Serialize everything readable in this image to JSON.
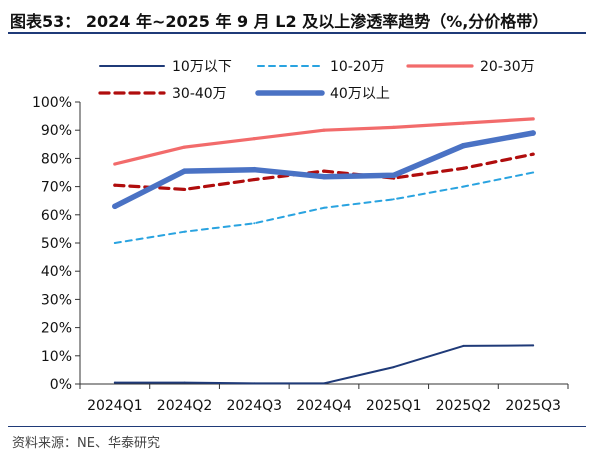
{
  "header": {
    "title": "图表53： 2024 年~2025 年 9 月 L2 及以上渗透率趋势（%,分价格带）"
  },
  "footer": {
    "source": "资料来源：NE、华泰研究"
  },
  "chart_data": {
    "type": "line",
    "categories": [
      "2024Q1",
      "2024Q2",
      "2024Q3",
      "2024Q4",
      "2025Q1",
      "2025Q2",
      "2025Q3"
    ],
    "ylim": [
      0,
      100
    ],
    "yticks": [
      "0%",
      "10%",
      "20%",
      "30%",
      "40%",
      "50%",
      "60%",
      "70%",
      "80%",
      "90%",
      "100%"
    ],
    "grid": false,
    "legend_position": "top",
    "series": [
      {
        "name": "10万以下",
        "values": [
          0.5,
          0.5,
          0.2,
          0.2,
          6,
          13.5,
          13.7
        ],
        "color": "#1f3a78",
        "style": "solid-thin"
      },
      {
        "name": "10-20万",
        "values": [
          50,
          54,
          57,
          62.5,
          65.5,
          70,
          75
        ],
        "color": "#29a3e0",
        "style": "dashed-thin"
      },
      {
        "name": "20-30万",
        "values": [
          78,
          84,
          87,
          90,
          91,
          92.5,
          94
        ],
        "color": "#f26b6b",
        "style": "solid-medium"
      },
      {
        "name": "30-40万",
        "values": [
          70.5,
          69,
          72.5,
          75.5,
          73,
          76.5,
          81.5
        ],
        "color": "#b00d0d",
        "style": "dashed-medium"
      },
      {
        "name": "40万以上",
        "values": [
          63,
          75.5,
          76,
          73.5,
          74,
          84.5,
          89
        ],
        "color": "#4a72c4",
        "style": "solid-thick"
      }
    ]
  }
}
